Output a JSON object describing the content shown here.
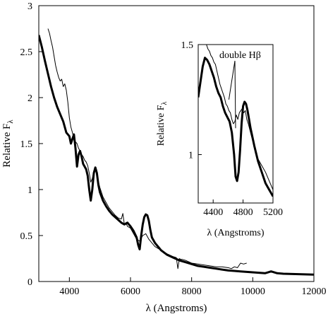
{
  "chart_data": [
    {
      "type": "line",
      "role": "main",
      "xlabel": "λ (Angstroms)",
      "ylabel": "Relative F",
      "ylabel_subscript": "λ",
      "xlim": [
        3000,
        12000
      ],
      "ylim": [
        0,
        3
      ],
      "xticks": [
        4000,
        6000,
        8000,
        10000,
        12000
      ],
      "yticks": [
        0,
        0.5,
        1,
        1.5,
        2,
        2.5,
        3
      ],
      "xtick_labels": [
        "4000",
        "6000",
        "8000",
        "10000",
        "12000"
      ],
      "ytick_labels": [
        "0",
        "0.5",
        "1",
        "1.5",
        "2",
        "2.5",
        "3"
      ],
      "grid": false,
      "legend": "none",
      "series": [
        {
          "style": "thick",
          "x": [
            3000,
            3100,
            3200,
            3300,
            3400,
            3500,
            3600,
            3700,
            3800,
            3900,
            4000,
            4050,
            4100,
            4150,
            4200,
            4250,
            4300,
            4350,
            4400,
            4450,
            4500,
            4550,
            4600,
            4650,
            4700,
            4750,
            4800,
            4850,
            4900,
            4950,
            5000,
            5100,
            5200,
            5300,
            5400,
            5500,
            5600,
            5700,
            5800,
            5900,
            6000,
            6100,
            6200,
            6250,
            6300,
            6350,
            6400,
            6450,
            6500,
            6550,
            6600,
            6650,
            6700,
            6800,
            6900,
            7000,
            7200,
            7400,
            7600,
            7800,
            8000,
            8200,
            8400,
            8600,
            8800,
            9000,
            9200,
            9400,
            9600,
            9800,
            10000,
            10200,
            10400,
            10600,
            10800,
            11000,
            11500,
            12000
          ],
          "y": [
            2.68,
            2.55,
            2.4,
            2.26,
            2.12,
            2.0,
            1.9,
            1.82,
            1.74,
            1.62,
            1.58,
            1.5,
            1.55,
            1.6,
            1.45,
            1.25,
            1.38,
            1.42,
            1.36,
            1.28,
            1.25,
            1.22,
            1.15,
            1.0,
            0.88,
            1.0,
            1.18,
            1.24,
            1.18,
            1.05,
            0.97,
            0.88,
            0.82,
            0.77,
            0.73,
            0.7,
            0.67,
            0.64,
            0.62,
            0.64,
            0.6,
            0.55,
            0.48,
            0.4,
            0.35,
            0.5,
            0.62,
            0.7,
            0.73,
            0.72,
            0.66,
            0.56,
            0.48,
            0.42,
            0.38,
            0.34,
            0.29,
            0.26,
            0.23,
            0.21,
            0.19,
            0.17,
            0.16,
            0.15,
            0.14,
            0.13,
            0.12,
            0.115,
            0.11,
            0.105,
            0.1,
            0.095,
            0.09,
            0.11,
            0.09,
            0.085,
            0.08,
            0.075
          ]
        },
        {
          "style": "thin",
          "x": [
            3300,
            3350,
            3400,
            3450,
            3500,
            3550,
            3600,
            3650,
            3700,
            3750,
            3800,
            3850,
            3900,
            3950,
            4000,
            4050,
            4100,
            4150,
            4200,
            4250,
            4300,
            4350,
            4400,
            4450,
            4500,
            4550,
            4600,
            4650,
            4700,
            4750,
            4800,
            4850,
            4900,
            5000,
            5100,
            5200,
            5300,
            5400,
            5500,
            5600,
            5700,
            5750,
            5800,
            5850,
            5900,
            6000,
            6100,
            6200,
            6300,
            6400,
            6500,
            6600,
            6700,
            6800,
            7000,
            7200,
            7400,
            7500,
            7550,
            7600,
            7650,
            7700,
            7800,
            8000,
            8200,
            8400,
            8600,
            8800,
            9000,
            9200,
            9300,
            9400,
            9500,
            9600,
            9700,
            9800
          ],
          "y": [
            2.75,
            2.7,
            2.62,
            2.55,
            2.45,
            2.35,
            2.28,
            2.22,
            2.18,
            2.2,
            2.12,
            2.15,
            2.08,
            1.95,
            1.78,
            1.68,
            1.62,
            1.55,
            1.52,
            1.5,
            1.45,
            1.42,
            1.38,
            1.36,
            1.32,
            1.3,
            1.26,
            1.18,
            1.08,
            1.12,
            1.2,
            1.22,
            1.15,
            1.02,
            0.92,
            0.86,
            0.8,
            0.76,
            0.72,
            0.69,
            0.68,
            0.74,
            0.62,
            0.64,
            0.6,
            0.58,
            0.52,
            0.46,
            0.44,
            0.5,
            0.52,
            0.46,
            0.42,
            0.38,
            0.34,
            0.3,
            0.27,
            0.26,
            0.14,
            0.25,
            0.24,
            0.24,
            0.23,
            0.2,
            0.19,
            0.18,
            0.17,
            0.16,
            0.16,
            0.15,
            0.14,
            0.16,
            0.15,
            0.2,
            0.19,
            0.2
          ]
        }
      ]
    },
    {
      "type": "line",
      "role": "inset",
      "xlabel": "λ (Angstroms)",
      "ylabel": "Relative F",
      "ylabel_subscript": "λ",
      "xlim": [
        4200,
        5200
      ],
      "ylim": [
        0.78,
        1.5
      ],
      "xticks": [
        4400,
        4800,
        5200
      ],
      "yticks": [
        1,
        1.5
      ],
      "xtick_labels": [
        "4400",
        "4800",
        "5200"
      ],
      "ytick_labels": [
        "1",
        "1.5"
      ],
      "grid": false,
      "legend": "none",
      "annotation": {
        "text": "double Hβ",
        "points_to": [
          [
            4610,
            1.25
          ],
          [
            4700,
            1.12
          ]
        ]
      },
      "series": [
        {
          "style": "thick",
          "x": [
            4200,
            4230,
            4260,
            4290,
            4320,
            4350,
            4380,
            4410,
            4440,
            4470,
            4500,
            4530,
            4560,
            4590,
            4620,
            4650,
            4680,
            4700,
            4720,
            4740,
            4760,
            4780,
            4800,
            4820,
            4840,
            4860,
            4880,
            4900,
            4950,
            5000,
            5050,
            5100,
            5150,
            5200
          ],
          "y": [
            1.26,
            1.33,
            1.4,
            1.44,
            1.43,
            1.41,
            1.38,
            1.35,
            1.31,
            1.28,
            1.26,
            1.22,
            1.19,
            1.17,
            1.15,
            1.1,
            1.0,
            0.9,
            0.88,
            0.92,
            1.02,
            1.14,
            1.22,
            1.24,
            1.23,
            1.2,
            1.16,
            1.12,
            1.04,
            0.97,
            0.92,
            0.87,
            0.84,
            0.81
          ]
        },
        {
          "style": "thin",
          "x": [
            4310,
            4330,
            4350,
            4370,
            4390,
            4410,
            4430,
            4450,
            4470,
            4490,
            4510,
            4530,
            4550,
            4570,
            4590,
            4610,
            4630,
            4650,
            4670,
            4690,
            4710,
            4730,
            4750,
            4770,
            4790,
            4810,
            4830,
            4850,
            4870,
            4900,
            4930,
            4960,
            5000,
            5050,
            5100,
            5150,
            5200
          ],
          "y": [
            1.5,
            1.48,
            1.47,
            1.45,
            1.44,
            1.42,
            1.41,
            1.38,
            1.35,
            1.32,
            1.3,
            1.28,
            1.26,
            1.23,
            1.22,
            1.2,
            1.19,
            1.16,
            1.14,
            1.15,
            1.18,
            1.16,
            1.19,
            1.2,
            1.21,
            1.19,
            1.2,
            1.16,
            1.14,
            1.1,
            1.06,
            1.02,
            0.98,
            0.95,
            0.92,
            0.88,
            0.84
          ]
        }
      ]
    }
  ]
}
